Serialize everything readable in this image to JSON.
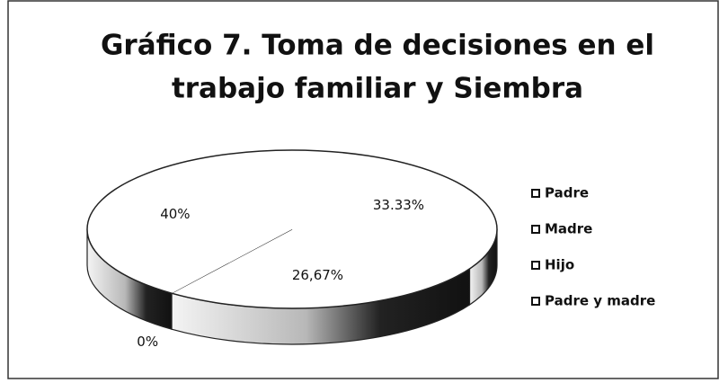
{
  "chart_data": {
    "type": "pie3d",
    "title": [
      "Gráfico 7. Toma de decisiones en el",
      "trabajo familiar y Siembra"
    ],
    "categories": [
      "Padre",
      "Madre",
      "Hijo",
      "Padre y madre"
    ],
    "values": [
      33.33,
      26.67,
      0,
      40
    ],
    "value_labels": [
      "33.33%",
      "26,67%",
      "0%",
      "40%"
    ],
    "colors": [
      "#ffffff",
      "#ffffff",
      "#ffffff",
      "#ffffff"
    ],
    "legend": "right"
  }
}
